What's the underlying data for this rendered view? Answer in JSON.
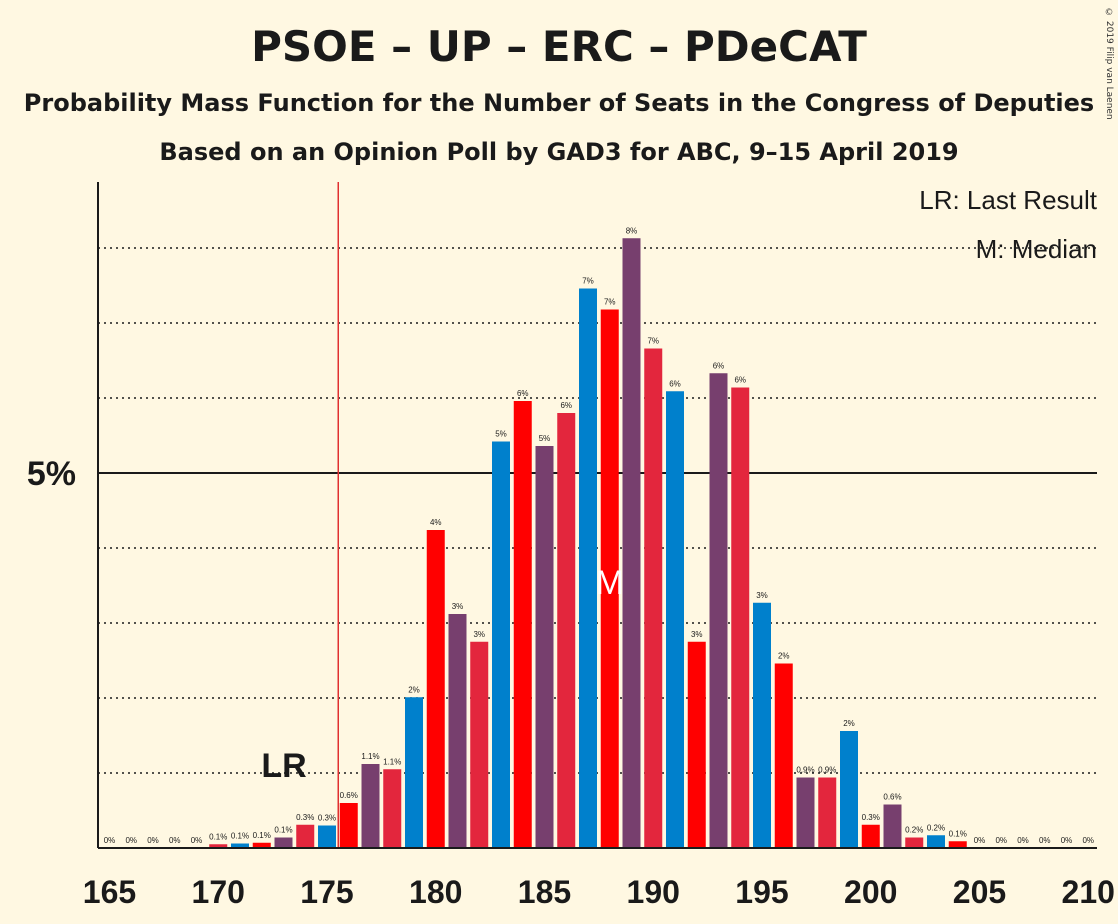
{
  "title": "PSOE – UP – ERC – PDeCAT",
  "subtitle": "Probability Mass Function for the Number of Seats in the Congress of Deputies",
  "subtitle2": "Based on an Opinion Poll by GAD3 for ABC, 9–15 April 2019",
  "copyright": "© 2019 Filip van Laenen",
  "legend": {
    "lr": "LR: Last Result",
    "m": "M: Median"
  },
  "markers": {
    "lr_label": "LR",
    "median_label": "M"
  },
  "colors": {
    "background": "#fff8e2",
    "red": "#ff0000",
    "crimson": "#e3263d",
    "purple": "#773f6e",
    "blue": "#0080cc",
    "lr_line": "#e03030"
  },
  "chart_data": {
    "type": "bar",
    "xlabel": "",
    "ylabel": "",
    "x_ticks": [
      165,
      170,
      175,
      180,
      185,
      190,
      195,
      200,
      205,
      210
    ],
    "y_ticks": [
      {
        "value": 5,
        "label": "5%"
      }
    ],
    "ylim": [
      0,
      8.8
    ],
    "xlim": [
      164.5,
      210.5
    ],
    "gridlines_percent": [
      1,
      2,
      3,
      4,
      6,
      7,
      8
    ],
    "last_result": 176,
    "median": 188,
    "bars": [
      {
        "seats": 165,
        "value": 0,
        "label": "0%",
        "color": "blue"
      },
      {
        "seats": 166,
        "value": 0,
        "label": "0%",
        "color": "purple"
      },
      {
        "seats": 167,
        "value": 0,
        "label": "0%",
        "color": "crimson"
      },
      {
        "seats": 168,
        "value": 0,
        "label": "0%",
        "color": "red"
      },
      {
        "seats": 169,
        "value": 0,
        "label": "0%",
        "color": "blue"
      },
      {
        "seats": 170,
        "value": 0.05,
        "label": "0.1%",
        "color": "crimson"
      },
      {
        "seats": 171,
        "value": 0.06,
        "label": "0.1%",
        "color": "blue"
      },
      {
        "seats": 172,
        "value": 0.07,
        "label": "0.1%",
        "color": "red"
      },
      {
        "seats": 173,
        "value": 0.14,
        "label": "0.1%",
        "color": "purple"
      },
      {
        "seats": 174,
        "value": 0.31,
        "label": "0.3%",
        "color": "crimson"
      },
      {
        "seats": 175,
        "value": 0.3,
        "label": "0.3%",
        "color": "blue"
      },
      {
        "seats": 176,
        "value": 0.6,
        "label": "0.6%",
        "color": "red"
      },
      {
        "seats": 177,
        "value": 1.12,
        "label": "1.1%",
        "color": "purple"
      },
      {
        "seats": 178,
        "value": 1.05,
        "label": "1.1%",
        "color": "crimson"
      },
      {
        "seats": 179,
        "value": 2.01,
        "label": "2%",
        "color": "blue"
      },
      {
        "seats": 180,
        "value": 4.24,
        "label": "4%",
        "color": "red"
      },
      {
        "seats": 181,
        "value": 3.12,
        "label": "3%",
        "color": "purple"
      },
      {
        "seats": 182,
        "value": 2.75,
        "label": "3%",
        "color": "crimson"
      },
      {
        "seats": 183,
        "value": 5.42,
        "label": "5%",
        "color": "blue"
      },
      {
        "seats": 184,
        "value": 5.96,
        "label": "6%",
        "color": "red"
      },
      {
        "seats": 185,
        "value": 5.36,
        "label": "5%",
        "color": "purple"
      },
      {
        "seats": 186,
        "value": 5.8,
        "label": "6%",
        "color": "crimson"
      },
      {
        "seats": 187,
        "value": 7.46,
        "label": "7%",
        "color": "blue"
      },
      {
        "seats": 188,
        "value": 7.18,
        "label": "7%",
        "color": "red"
      },
      {
        "seats": 189,
        "value": 8.13,
        "label": "8%",
        "color": "purple"
      },
      {
        "seats": 190,
        "value": 6.66,
        "label": "7%",
        "color": "crimson"
      },
      {
        "seats": 191,
        "value": 6.09,
        "label": "6%",
        "color": "blue"
      },
      {
        "seats": 192,
        "value": 2.75,
        "label": "3%",
        "color": "red"
      },
      {
        "seats": 193,
        "value": 6.33,
        "label": "6%",
        "color": "purple"
      },
      {
        "seats": 194,
        "value": 6.14,
        "label": "6%",
        "color": "crimson"
      },
      {
        "seats": 195,
        "value": 3.27,
        "label": "3%",
        "color": "blue"
      },
      {
        "seats": 196,
        "value": 2.46,
        "label": "2%",
        "color": "red"
      },
      {
        "seats": 197,
        "value": 0.94,
        "label": "0.9%",
        "color": "purple"
      },
      {
        "seats": 198,
        "value": 0.94,
        "label": "0.9%",
        "color": "crimson"
      },
      {
        "seats": 199,
        "value": 1.56,
        "label": "2%",
        "color": "blue"
      },
      {
        "seats": 200,
        "value": 0.31,
        "label": "0.3%",
        "color": "red"
      },
      {
        "seats": 201,
        "value": 0.58,
        "label": "0.6%",
        "color": "purple"
      },
      {
        "seats": 202,
        "value": 0.14,
        "label": "0.2%",
        "color": "crimson"
      },
      {
        "seats": 203,
        "value": 0.17,
        "label": "0.2%",
        "color": "blue"
      },
      {
        "seats": 204,
        "value": 0.09,
        "label": "0.1%",
        "color": "red"
      },
      {
        "seats": 205,
        "value": 0,
        "label": "0%",
        "color": "purple"
      },
      {
        "seats": 206,
        "value": 0,
        "label": "0%",
        "color": "crimson"
      },
      {
        "seats": 207,
        "value": 0,
        "label": "0%",
        "color": "blue"
      },
      {
        "seats": 208,
        "value": 0,
        "label": "0%",
        "color": "red"
      },
      {
        "seats": 209,
        "value": 0,
        "label": "0%",
        "color": "purple"
      },
      {
        "seats": 210,
        "value": 0,
        "label": "0%",
        "color": "crimson"
      }
    ]
  }
}
